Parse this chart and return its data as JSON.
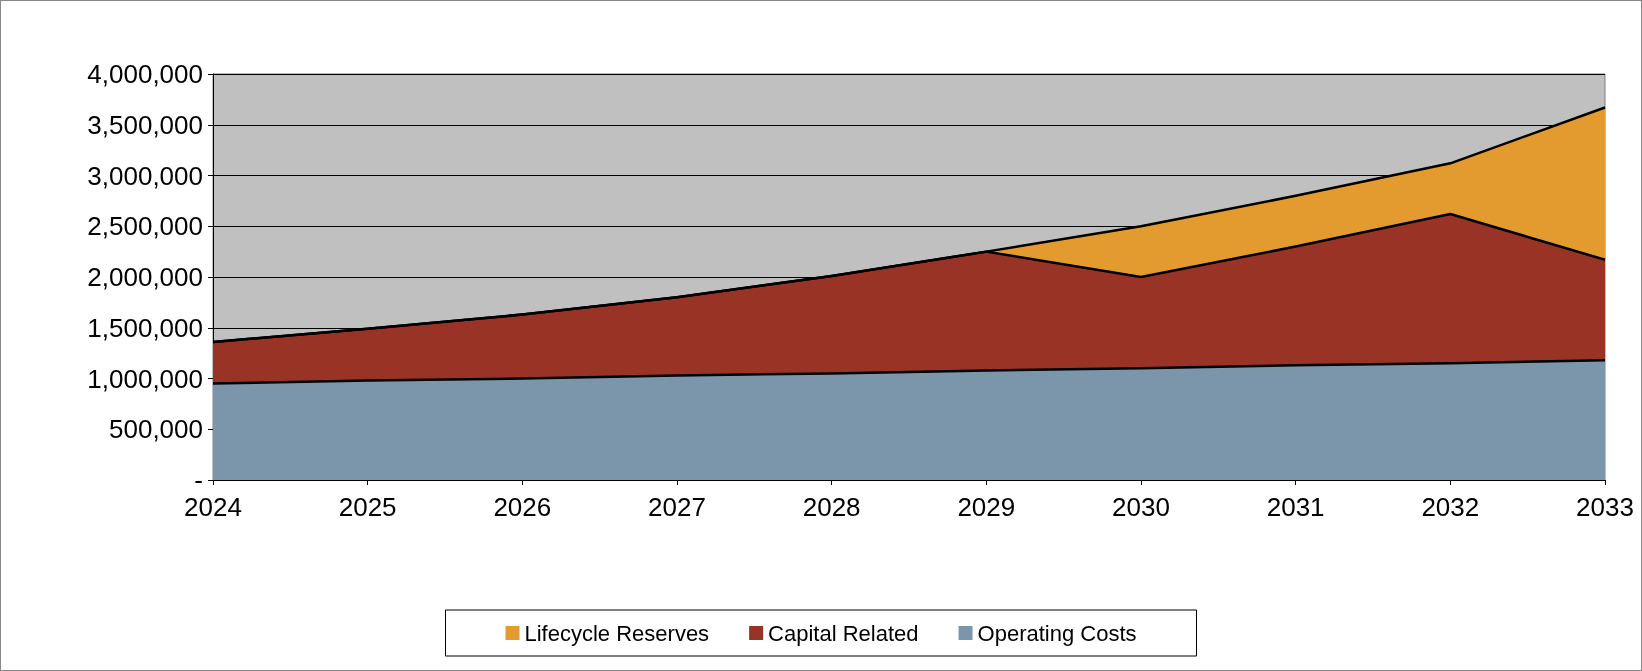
{
  "chart_data": {
    "type": "area",
    "stacked": true,
    "categories": [
      "2024",
      "2025",
      "2026",
      "2027",
      "2028",
      "2029",
      "2030",
      "2031",
      "2032",
      "2033"
    ],
    "series": [
      {
        "name": "Operating Costs",
        "color": "#7b96ab",
        "values": [
          950000,
          980000,
          1000000,
          1030000,
          1050000,
          1080000,
          1100000,
          1130000,
          1150000,
          1180000
        ]
      },
      {
        "name": "Capital Related",
        "color": "#993326",
        "values": [
          410000,
          510000,
          630000,
          770000,
          960000,
          1170000,
          900000,
          1170000,
          1470000,
          990000
        ]
      },
      {
        "name": "Lifecycle Reserves",
        "color": "#e39a2e",
        "values": [
          0,
          0,
          0,
          0,
          0,
          0,
          500000,
          500000,
          500000,
          1500000
        ]
      }
    ],
    "ylim": [
      0,
      4000000
    ],
    "yticks": [
      {
        "value": 0,
        "label": "-"
      },
      {
        "value": 500000,
        "label": "500,000"
      },
      {
        "value": 1000000,
        "label": "1,000,000"
      },
      {
        "value": 1500000,
        "label": "1,500,000"
      },
      {
        "value": 2000000,
        "label": "2,000,000"
      },
      {
        "value": 2500000,
        "label": "2,500,000"
      },
      {
        "value": 3000000,
        "label": "3,000,000"
      },
      {
        "value": 3500000,
        "label": "3,500,000"
      },
      {
        "value": 4000000,
        "label": "4,000,000"
      }
    ],
    "grid": "y",
    "legend": "bottom",
    "line_style": "solid",
    "marker": "none"
  }
}
